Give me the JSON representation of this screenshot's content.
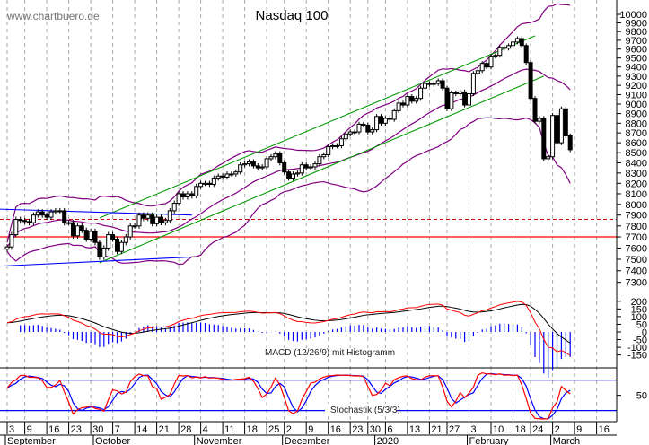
{
  "chart_data": {
    "type": "candlestick",
    "title": "Nasdaq 100",
    "watermark": "www.chartbuero.de",
    "y_scale": "log",
    "ylim": [
      7250,
      10150
    ],
    "grid": "vertical dashed at weekly ticks",
    "colors": {
      "up_body": "#ffffff",
      "down_body": "#000000",
      "bollinger": "#800080",
      "channel": "#009900",
      "support": "#0000ff",
      "level": "#ff0000",
      "macd": "#ff0000",
      "signal": "#000000",
      "histogram": "#0000ff",
      "stoch_k": "#ff0000",
      "stoch_d": "#0000ff",
      "stoch_bands": "#0000ff"
    },
    "price_ticks": [
      10000,
      9900,
      9800,
      9700,
      9600,
      9500,
      9400,
      9300,
      9200,
      9100,
      9000,
      8900,
      8800,
      8700,
      8600,
      8500,
      8400,
      8300,
      8200,
      8100,
      8000,
      7900,
      7800,
      7700,
      7600,
      7500,
      7400,
      7300
    ],
    "dates": [
      "2019-09-03",
      "2019-09-04",
      "2019-09-05",
      "2019-09-06",
      "2019-09-09",
      "2019-09-10",
      "2019-09-11",
      "2019-09-12",
      "2019-09-13",
      "2019-09-16",
      "2019-09-17",
      "2019-09-18",
      "2019-09-19",
      "2019-09-20",
      "2019-09-23",
      "2019-09-24",
      "2019-09-25",
      "2019-09-26",
      "2019-09-27",
      "2019-09-30",
      "2019-10-01",
      "2019-10-02",
      "2019-10-03",
      "2019-10-04",
      "2019-10-07",
      "2019-10-08",
      "2019-10-09",
      "2019-10-10",
      "2019-10-11",
      "2019-10-14",
      "2019-10-15",
      "2019-10-16",
      "2019-10-17",
      "2019-10-18",
      "2019-10-21",
      "2019-10-22",
      "2019-10-23",
      "2019-10-24",
      "2019-10-25",
      "2019-10-28",
      "2019-10-29",
      "2019-10-30",
      "2019-10-31",
      "2019-11-01",
      "2019-11-04",
      "2019-11-05",
      "2019-11-06",
      "2019-11-07",
      "2019-11-08",
      "2019-11-11",
      "2019-11-12",
      "2019-11-13",
      "2019-11-14",
      "2019-11-15",
      "2019-11-18",
      "2019-11-19",
      "2019-11-20",
      "2019-11-21",
      "2019-11-22",
      "2019-11-25",
      "2019-11-26",
      "2019-11-27",
      "2019-11-29",
      "2019-12-02",
      "2019-12-03",
      "2019-12-04",
      "2019-12-05",
      "2019-12-06",
      "2019-12-09",
      "2019-12-10",
      "2019-12-11",
      "2019-12-12",
      "2019-12-13",
      "2019-12-16",
      "2019-12-17",
      "2019-12-18",
      "2019-12-19",
      "2019-12-20",
      "2019-12-23",
      "2019-12-24",
      "2019-12-26",
      "2019-12-27",
      "2019-12-30",
      "2019-12-31",
      "2020-01-02",
      "2020-01-03",
      "2020-01-06",
      "2020-01-07",
      "2020-01-08",
      "2020-01-09",
      "2020-01-10",
      "2020-01-13",
      "2020-01-14",
      "2020-01-15",
      "2020-01-16",
      "2020-01-17",
      "2020-01-21",
      "2020-01-22",
      "2020-01-23",
      "2020-01-24",
      "2020-01-27",
      "2020-01-28",
      "2020-01-29",
      "2020-01-30",
      "2020-01-31",
      "2020-02-03",
      "2020-02-04",
      "2020-02-05",
      "2020-02-06",
      "2020-02-07",
      "2020-02-10",
      "2020-02-11",
      "2020-02-12",
      "2020-02-13",
      "2020-02-14",
      "2020-02-18",
      "2020-02-19",
      "2020-02-20",
      "2020-02-21",
      "2020-02-24",
      "2020-02-25",
      "2020-02-26",
      "2020-02-27",
      "2020-02-28",
      "2020-03-02",
      "2020-03-03",
      "2020-03-04",
      "2020-03-05",
      "2020-03-06"
    ],
    "close": [
      7610,
      7720,
      7860,
      7850,
      7840,
      7830,
      7900,
      7930,
      7900,
      7880,
      7930,
      7940,
      7940,
      7830,
      7830,
      7710,
      7800,
      7760,
      7680,
      7750,
      7650,
      7520,
      7600,
      7720,
      7680,
      7570,
      7650,
      7700,
      7800,
      7800,
      7900,
      7870,
      7900,
      7820,
      7880,
      7830,
      7850,
      7940,
      8010,
      8100,
      8070,
      8100,
      8080,
      8170,
      8200,
      8200,
      8190,
      8250,
      8270,
      8260,
      8290,
      8290,
      8310,
      8380,
      8390,
      8410,
      8370,
      8350,
      8360,
      8440,
      8460,
      8490,
      8400,
      8310,
      8250,
      8290,
      8300,
      8380,
      8350,
      8360,
      8390,
      8460,
      8480,
      8560,
      8570,
      8570,
      8640,
      8690,
      8710,
      8710,
      8790,
      8780,
      8710,
      8733,
      8870,
      8800,
      8850,
      8840,
      8930,
      9010,
      8990,
      9080,
      9030,
      9060,
      9170,
      9220,
      9210,
      9220,
      9250,
      9170,
      8950,
      9120,
      9110,
      9130,
      8990,
      9110,
      9330,
      9360,
      9440,
      9400,
      9520,
      9530,
      9620,
      9610,
      9640,
      9680,
      9720,
      9640,
      9450,
      9060,
      8820,
      8850,
      8440,
      8460,
      8880,
      8600,
      8950,
      8670,
      8530
    ],
    "trendlines": [
      {
        "kind": "channel-upper",
        "from": [
          "2019-10-02",
          7873
        ],
        "to": [
          "2020-02-25",
          9750
        ]
      },
      {
        "kind": "channel-lower",
        "from": [
          "2019-10-02",
          7470
        ],
        "to": [
          "2020-02-27",
          9300
        ]
      },
      {
        "kind": "support-upper",
        "from": [
          "2019-09-03",
          7955
        ],
        "to": [
          "2019-10-31",
          7900
        ]
      },
      {
        "kind": "support-lower",
        "from": [
          "2019-09-03",
          7440
        ],
        "to": [
          "2019-10-31",
          7520
        ]
      }
    ],
    "levels": [
      {
        "value": 7700,
        "style": "solid"
      },
      {
        "value": 7860,
        "style": "dashed"
      }
    ],
    "macd": {
      "label": "MACD (12/26/9) mit Histogramm",
      "ticks": [
        200,
        150,
        100,
        50,
        0,
        -50,
        -100,
        -150
      ]
    },
    "stochastic": {
      "label": "Stochastik (5/3/3)",
      "ticks": [
        50
      ],
      "bands": [
        80,
        20
      ]
    },
    "x_ticks": [
      {
        "date": "2019-09-03",
        "label": "3"
      },
      {
        "date": "2019-09-09",
        "label": "9"
      },
      {
        "date": "2019-09-16",
        "label": "16"
      },
      {
        "date": "2019-09-23",
        "label": "23"
      },
      {
        "date": "2019-09-30",
        "label": "30"
      },
      {
        "date": "2019-10-07",
        "label": "7"
      },
      {
        "date": "2019-10-14",
        "label": "14"
      },
      {
        "date": "2019-10-21",
        "label": "21"
      },
      {
        "date": "2019-10-28",
        "label": "28"
      },
      {
        "date": "2019-11-04",
        "label": "4"
      },
      {
        "date": "2019-11-11",
        "label": "11"
      },
      {
        "date": "2019-11-18",
        "label": "18"
      },
      {
        "date": "2019-11-25",
        "label": "25"
      },
      {
        "date": "2019-12-02",
        "label": "2"
      },
      {
        "date": "2019-12-09",
        "label": "9"
      },
      {
        "date": "2019-12-16",
        "label": "16"
      },
      {
        "date": "2019-12-23",
        "label": "23"
      },
      {
        "date": "2019-12-30",
        "label": "30"
      },
      {
        "date": "2020-01-06",
        "label": "6"
      },
      {
        "date": "2020-01-13",
        "label": "13"
      },
      {
        "date": "2020-01-21",
        "label": "21"
      },
      {
        "date": "2020-01-27",
        "label": "27"
      },
      {
        "date": "2020-02-03",
        "label": "3"
      },
      {
        "date": "2020-02-10",
        "label": "10"
      },
      {
        "date": "2020-02-18",
        "label": "18"
      },
      {
        "date": "2020-02-24",
        "label": "24"
      },
      {
        "date": "2020-03-02",
        "label": "2"
      },
      {
        "date": "2020-03-09",
        "label": "9",
        "offset": 129
      },
      {
        "date": "2020-03-16",
        "label": "16",
        "offset": 134
      }
    ],
    "months": [
      {
        "date": "2019-09-03",
        "label": "September"
      },
      {
        "date": "2019-10-01",
        "label": "October"
      },
      {
        "date": "2019-11-01",
        "label": "November"
      },
      {
        "date": "2019-12-02",
        "label": "December"
      },
      {
        "date": "2020-01-02",
        "label": "2020"
      },
      {
        "date": "2020-02-03",
        "label": "February"
      },
      {
        "date": "2020-03-02",
        "label": "March"
      }
    ]
  }
}
